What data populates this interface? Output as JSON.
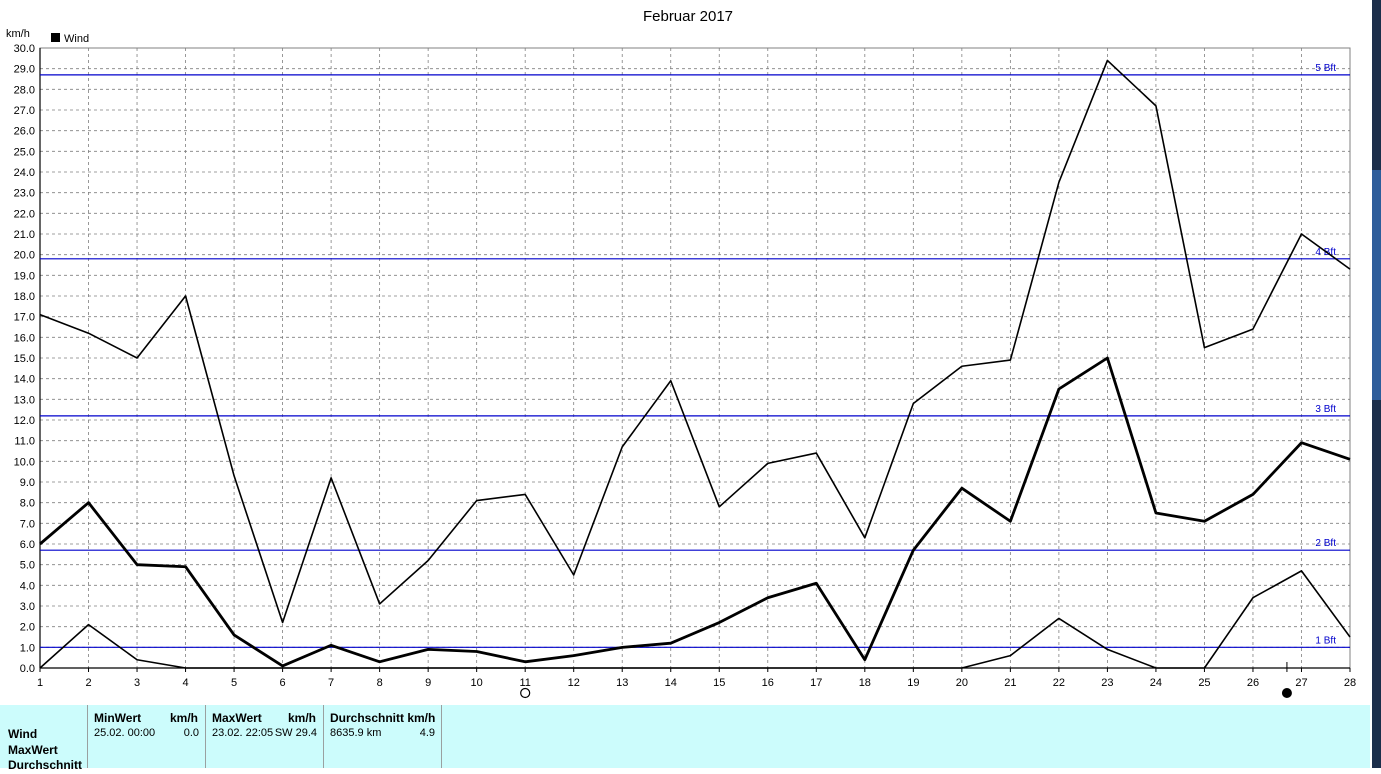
{
  "chart_data": {
    "type": "line",
    "title": "Februar 2017",
    "ylabel": "km/h",
    "xlabel": "",
    "legend": {
      "label": "Wind",
      "placement": "top-left",
      "color": "#000000"
    },
    "ylim": [
      0,
      30
    ],
    "yticks": [
      "0.0",
      "1.0",
      "2.0",
      "3.0",
      "4.0",
      "5.0",
      "6.0",
      "7.0",
      "8.0",
      "9.0",
      "10.0",
      "11.0",
      "12.0",
      "13.0",
      "14.0",
      "15.0",
      "16.0",
      "17.0",
      "18.0",
      "19.0",
      "20.0",
      "21.0",
      "22.0",
      "23.0",
      "24.0",
      "25.0",
      "26.0",
      "27.0",
      "28.0",
      "29.0",
      "30.0"
    ],
    "x": [
      1,
      2,
      3,
      4,
      5,
      6,
      7,
      8,
      9,
      10,
      11,
      12,
      13,
      14,
      15,
      16,
      17,
      18,
      19,
      20,
      21,
      22,
      23,
      24,
      25,
      26,
      27,
      28
    ],
    "grid": true,
    "series": [
      {
        "role": "max",
        "stroke": 1.6,
        "values": [
          17.1,
          16.2,
          15.0,
          18.0,
          9.3,
          2.2,
          9.2,
          3.1,
          5.2,
          8.1,
          8.4,
          4.5,
          10.7,
          13.9,
          7.8,
          9.9,
          10.4,
          6.3,
          12.8,
          14.6,
          14.9,
          23.5,
          29.4,
          27.2,
          15.5,
          16.4,
          21.0,
          19.3
        ]
      },
      {
        "role": "avg",
        "stroke": 2.8,
        "values": [
          6.0,
          8.0,
          5.0,
          4.9,
          1.6,
          0.1,
          1.1,
          0.3,
          0.9,
          0.8,
          0.3,
          0.6,
          1.0,
          1.2,
          2.2,
          3.4,
          4.1,
          0.4,
          5.7,
          8.7,
          7.1,
          13.5,
          15.0,
          7.5,
          7.1,
          8.4,
          10.9,
          10.1
        ]
      },
      {
        "role": "min",
        "stroke": 1.6,
        "values": [
          0.0,
          2.1,
          0.4,
          0.0,
          0.0,
          0.0,
          0.0,
          0.0,
          0.0,
          0.0,
          0.0,
          0.0,
          0.0,
          0.0,
          0.0,
          0.0,
          0.0,
          0.0,
          0.0,
          0.0,
          0.6,
          2.4,
          0.9,
          0.0,
          0.0,
          3.4,
          4.7,
          1.5
        ]
      }
    ],
    "reference_lines": [
      {
        "label": "1 Bft",
        "y": 1.0
      },
      {
        "label": "2 Bft",
        "y": 5.7
      },
      {
        "label": "3 Bft",
        "y": 12.2
      },
      {
        "label": "4 Bft",
        "y": 19.8
      },
      {
        "label": "5 Bft",
        "y": 28.7
      }
    ],
    "reference_color": "#0000cc",
    "moon_phases": [
      {
        "day": 11,
        "phase": "full-moon"
      },
      {
        "day": 26.7,
        "phase": "new-moon"
      }
    ]
  },
  "stats": {
    "rows": [
      "Wind",
      "MaxWert",
      "Durchschnitt"
    ],
    "min": {
      "header": "MinWert",
      "unit": "km/h",
      "date": "25.02.  00:00",
      "value": "0.0"
    },
    "max": {
      "header": "MaxWert",
      "unit": "km/h",
      "date": "23.02.  22:05",
      "value": "SW 29.4"
    },
    "avg": {
      "header": "Durchschnitt km/h",
      "distance": "8635.9 km",
      "value": "4.9"
    }
  },
  "colors": {
    "panel": "#ccfcfc",
    "grid": "#808080",
    "axis": "#000000",
    "frame": "#808080"
  }
}
